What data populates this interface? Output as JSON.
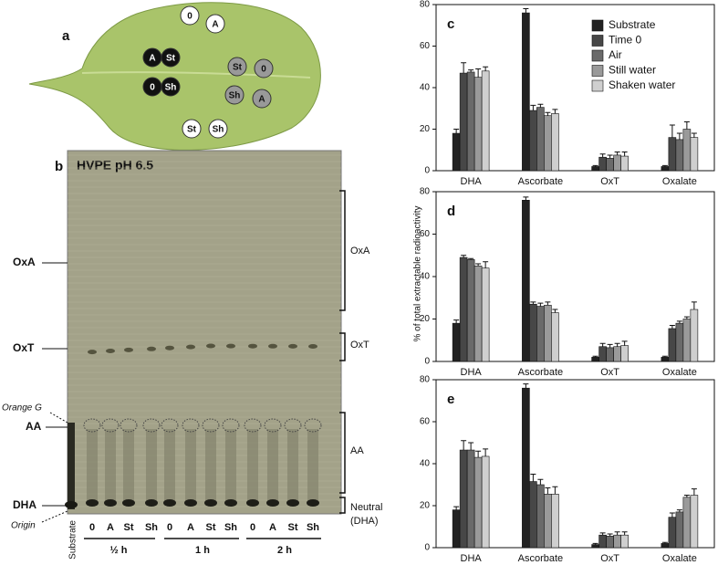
{
  "panel_a": {
    "label": "a",
    "spots": [
      "0",
      "A",
      "A",
      "St",
      "0",
      "Sh",
      "St",
      "0",
      "Sh",
      "A",
      "St",
      "Sh"
    ]
  },
  "panel_b": {
    "label": "b",
    "title": "HVPE pH 6.5",
    "left_labels": [
      "OxA",
      "OxT",
      "Orange G",
      "AA",
      "DHA",
      "Origin"
    ],
    "right_labels": [
      "OxA",
      "OxT",
      "AA",
      "Neutral (DHA)"
    ],
    "substrate_lane": "Substrate",
    "lanes": [
      "0",
      "A",
      "St",
      "Sh",
      "0",
      "A",
      "St",
      "Sh",
      "0",
      "A",
      "St",
      "Sh"
    ],
    "times": [
      "½ h",
      "1 h",
      "2 h"
    ]
  },
  "y_axis_label": "% of total extractable radioactivity",
  "chart_data": [
    {
      "type": "bar",
      "panel": "c",
      "legend": true,
      "categories": [
        "DHA",
        "Ascorbate",
        "OxT",
        "Oxalate"
      ],
      "ylim": [
        0,
        80
      ],
      "yticks": [
        0,
        20,
        40,
        60,
        80
      ],
      "series": [
        {
          "name": "Substrate",
          "color": "#222222",
          "values": [
            18,
            76,
            2,
            2
          ],
          "errors": [
            2,
            2,
            0.5,
            0.5
          ]
        },
        {
          "name": "Time 0",
          "color": "#474747",
          "values": [
            47,
            29,
            6.5,
            16
          ],
          "errors": [
            5,
            2.5,
            1.5,
            6
          ]
        },
        {
          "name": "Air",
          "color": "#6a6a6a",
          "values": [
            47.5,
            30.5,
            6,
            15
          ],
          "errors": [
            1,
            1.5,
            1.5,
            3
          ]
        },
        {
          "name": "Still water",
          "color": "#9a9a9a",
          "values": [
            45,
            26.5,
            7.5,
            20
          ],
          "errors": [
            4,
            1.5,
            1.5,
            3.5
          ]
        },
        {
          "name": "Shaken water",
          "color": "#cfcfcf",
          "values": [
            48,
            27.5,
            7,
            16
          ],
          "errors": [
            2,
            2,
            2,
            2
          ]
        }
      ]
    },
    {
      "type": "bar",
      "panel": "d",
      "legend": false,
      "categories": [
        "DHA",
        "Ascorbate",
        "OxT",
        "Oxalate"
      ],
      "ylim": [
        0,
        80
      ],
      "yticks": [
        0,
        20,
        40,
        60,
        80
      ],
      "series": [
        {
          "color": "#222222",
          "values": [
            18,
            76,
            2,
            2
          ],
          "errors": [
            1.5,
            1.5,
            0.5,
            0.5
          ]
        },
        {
          "color": "#474747",
          "values": [
            49,
            27,
            7,
            15.5
          ],
          "errors": [
            1,
            1,
            1.5,
            1.5
          ]
        },
        {
          "color": "#6a6a6a",
          "values": [
            48,
            26,
            6.5,
            18
          ],
          "errors": [
            0.5,
            1.5,
            1.5,
            1
          ]
        },
        {
          "color": "#9a9a9a",
          "values": [
            45,
            26.5,
            7,
            20
          ],
          "errors": [
            1,
            1.5,
            1.5,
            1
          ]
        },
        {
          "color": "#cfcfcf",
          "values": [
            44,
            23,
            7.5,
            24.5
          ],
          "errors": [
            3,
            1.5,
            2,
            3.5
          ]
        }
      ]
    },
    {
      "type": "bar",
      "panel": "e",
      "legend": false,
      "categories": [
        "DHA",
        "Ascorbate",
        "OxT",
        "Oxalate"
      ],
      "ylim": [
        0,
        80
      ],
      "yticks": [
        0,
        20,
        40,
        60,
        80
      ],
      "series": [
        {
          "color": "#222222",
          "values": [
            18,
            76,
            1.5,
            2
          ],
          "errors": [
            1.5,
            2,
            0.5,
            0.5
          ]
        },
        {
          "color": "#474747",
          "values": [
            46.5,
            31.5,
            6,
            14.5
          ],
          "errors": [
            4.5,
            3.5,
            1,
            2
          ]
        },
        {
          "color": "#6a6a6a",
          "values": [
            46.5,
            30,
            5.5,
            17
          ],
          "errors": [
            3.5,
            2.5,
            1,
            1
          ]
        },
        {
          "color": "#9a9a9a",
          "values": [
            43,
            25.5,
            6,
            24
          ],
          "errors": [
            3,
            3,
            1.5,
            1
          ]
        },
        {
          "color": "#cfcfcf",
          "values": [
            43.5,
            25.5,
            6,
            25
          ],
          "errors": [
            3.5,
            3.5,
            1.5,
            3
          ]
        }
      ]
    }
  ]
}
